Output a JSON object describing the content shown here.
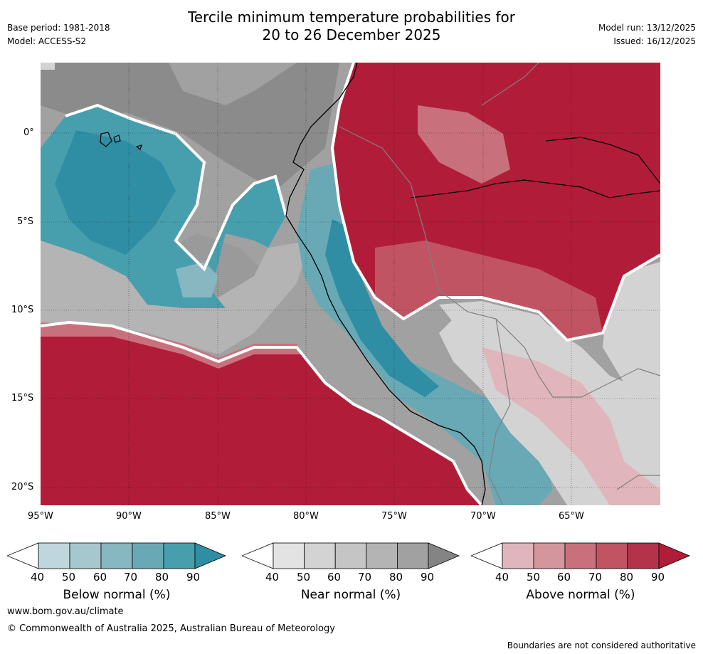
{
  "header": {
    "title_line1": "Tercile minimum temperature probabilities for",
    "title_line2": "20 to 26 December 2025",
    "base_period": "Base period: 1981-2018",
    "model": "Model: ACCESS-S2",
    "model_run": "Model run: 13/12/2025",
    "issued": "Issued: 16/12/2025"
  },
  "map": {
    "lat_labels": [
      "0°",
      "5°S",
      "10°S",
      "15°S",
      "20°S"
    ],
    "lon_labels": [
      "95°W",
      "90°W",
      "85°W",
      "80°W",
      "75°W",
      "70°W",
      "65°W"
    ]
  },
  "colorbars": [
    {
      "name": "below",
      "label": "Below normal (%)",
      "ticks": [
        "40",
        "50",
        "60",
        "70",
        "80",
        "90"
      ],
      "colors": [
        "#bfd7dc",
        "#a6c7ce",
        "#87b7c1",
        "#68a9b5",
        "#479fae",
        "#2f8ea3"
      ]
    },
    {
      "name": "near",
      "label": "Near normal (%)",
      "ticks": [
        "40",
        "50",
        "60",
        "70",
        "80",
        "90"
      ],
      "colors": [
        "#e3e3e3",
        "#d3d3d3",
        "#c5c5c5",
        "#b4b4b4",
        "#a1a1a1",
        "#848484"
      ]
    },
    {
      "name": "above",
      "label": "Above normal (%)",
      "ticks": [
        "40",
        "50",
        "60",
        "70",
        "80",
        "90"
      ],
      "colors": [
        "#e0b5bb",
        "#d4959c",
        "#c8717c",
        "#c05462",
        "#b5334a",
        "#b11d38"
      ]
    }
  ],
  "footer": {
    "website": "www.bom.gov.au/climate",
    "copyright": "© Commonwealth of Australia 2025, Australian Bureau of Meteorology",
    "disclaimer": "Boundaries are not considered authoritative"
  }
}
